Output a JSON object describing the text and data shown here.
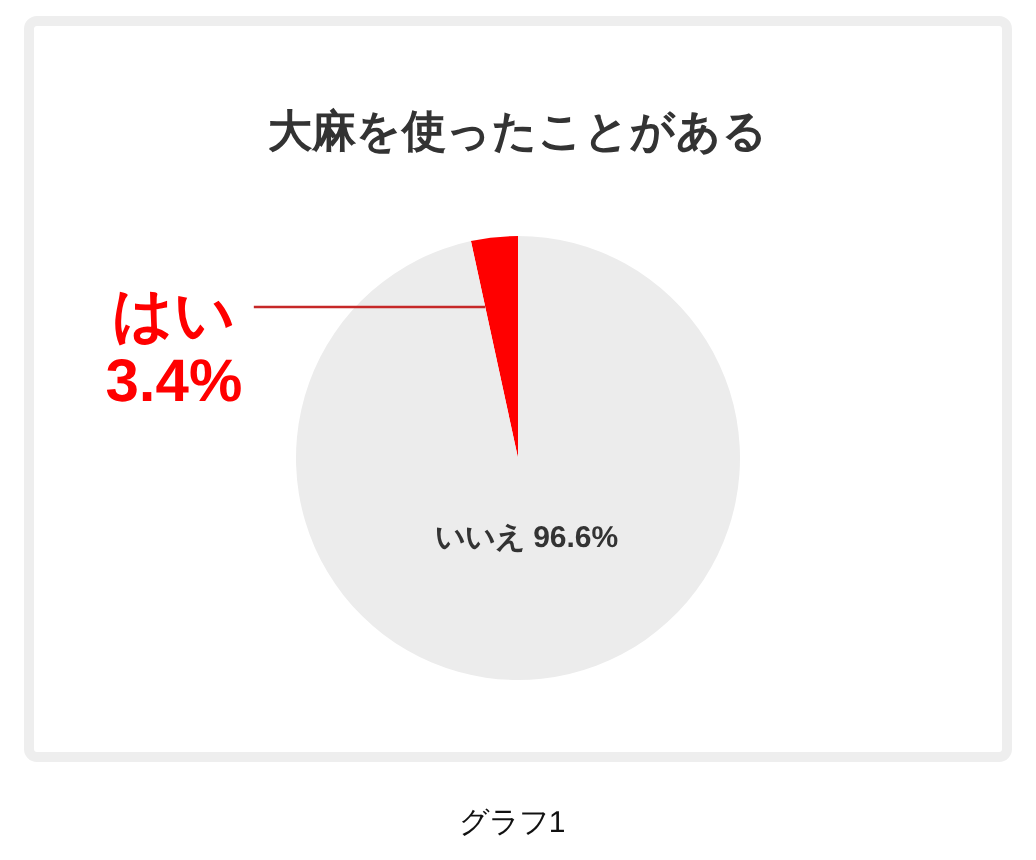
{
  "chart_data": {
    "type": "pie",
    "title": "大麻を使ったことがある",
    "categories": [
      "はい",
      "いいえ"
    ],
    "values": [
      3.4,
      96.6
    ],
    "colors": [
      "#ff0000",
      "#ececec"
    ],
    "value_labels": [
      "3.4%",
      "96.6%"
    ],
    "annotations": [
      "グラフ1"
    ]
  }
}
